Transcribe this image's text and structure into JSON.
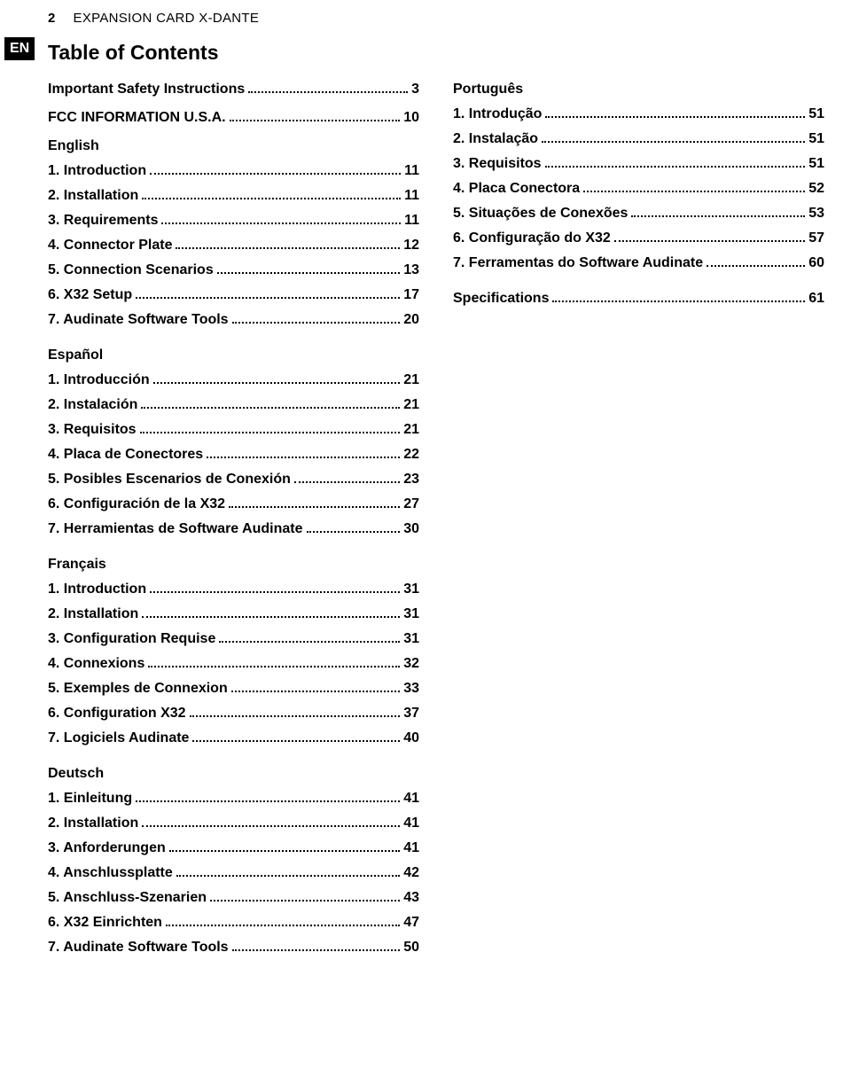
{
  "page_number": "2",
  "header_title": "EXPANSION CARD X-DANTE",
  "lang_badge": "EN",
  "toc_title": "Table of Contents",
  "left_column": [
    {
      "type": "row",
      "top": true,
      "label": "Important Safety Instructions",
      "page": "3"
    },
    {
      "type": "row",
      "top": true,
      "label": "FCC INFORMATION U.S.A.",
      "page": "10"
    },
    {
      "type": "heading",
      "label": "English"
    },
    {
      "type": "row",
      "label": "1. Introduction",
      "page": "11"
    },
    {
      "type": "row",
      "label": "2. Installation",
      "page": "11"
    },
    {
      "type": "row",
      "label": "3. Requirements ",
      "page": "11"
    },
    {
      "type": "row",
      "label": "4. Connector Plate",
      "page": "12"
    },
    {
      "type": "row",
      "label": "5. Connection Scenarios",
      "page": "13"
    },
    {
      "type": "row",
      "label": "6. X32 Setup",
      "page": "17"
    },
    {
      "type": "row",
      "label": "7. Audinate Software Tools",
      "page": "20"
    },
    {
      "type": "gap"
    },
    {
      "type": "heading",
      "label": "Español"
    },
    {
      "type": "row",
      "label": "1. Introducción",
      "page": "21"
    },
    {
      "type": "row",
      "label": "2. Instalación",
      "page": "21"
    },
    {
      "type": "row",
      "label": "3. Requisitos",
      "page": "21"
    },
    {
      "type": "row",
      "label": "4. Placa de Conectores",
      "page": "22"
    },
    {
      "type": "row",
      "label": "5. Posibles Escenarios de Conexión",
      "page": "23"
    },
    {
      "type": "row",
      "label": "6. Configuración de la X32",
      "page": "27"
    },
    {
      "type": "row",
      "label": "7. Herramientas de Software Audinate",
      "page": "30"
    },
    {
      "type": "gap"
    },
    {
      "type": "heading",
      "label": "Français"
    },
    {
      "type": "row",
      "label": "1. Introduction",
      "page": "31"
    },
    {
      "type": "row",
      "label": "2. Installation",
      "page": "31"
    },
    {
      "type": "row",
      "label": "3.  Configuration Requise ",
      "page": "31"
    },
    {
      "type": "row",
      "label": "4. Connexions",
      "page": "32"
    },
    {
      "type": "row",
      "label": "5. Exemples de Connexion",
      "page": "33"
    },
    {
      "type": "row",
      "label": "6. Configuration X32",
      "page": "37"
    },
    {
      "type": "row",
      "label": "7. Logiciels Audinate",
      "page": " 40"
    },
    {
      "type": "gap"
    },
    {
      "type": "heading",
      "label": "Deutsch"
    },
    {
      "type": "row",
      "label": "1. Einleitung",
      "page": "41"
    },
    {
      "type": "row",
      "label": "2. Installation",
      "page": "41"
    },
    {
      "type": "row",
      "label": "3. Anforderungen",
      "page": "41"
    },
    {
      "type": "row",
      "label": "4. Anschlussplatte",
      "page": "42"
    },
    {
      "type": "row",
      "label": "5. Anschluss-Szenarien",
      "page": "43"
    },
    {
      "type": "row",
      "label": "6. X32 Einrichten",
      "page": "47"
    },
    {
      "type": "row",
      "label": "7. Audinate Software Tools",
      "page": "50"
    }
  ],
  "right_column": [
    {
      "type": "heading",
      "label": "Português"
    },
    {
      "type": "row",
      "label": "1. Introdução",
      "page": "51"
    },
    {
      "type": "row",
      "label": "2. Instalação",
      "page": "51"
    },
    {
      "type": "row",
      "label": "3. Requisitos ",
      "page": "51"
    },
    {
      "type": "row",
      "label": "4. Placa Conectora",
      "page": "52"
    },
    {
      "type": "row",
      "label": "5. Situações de Conexões",
      "page": "53"
    },
    {
      "type": "row",
      "label": "6. Configuração do X32",
      "page": "57"
    },
    {
      "type": "row",
      "label": "7. Ferramentas do Software Audinate",
      "page": " 60"
    },
    {
      "type": "gap"
    },
    {
      "type": "row",
      "top": true,
      "label": "Specifications",
      "page": "61"
    }
  ]
}
